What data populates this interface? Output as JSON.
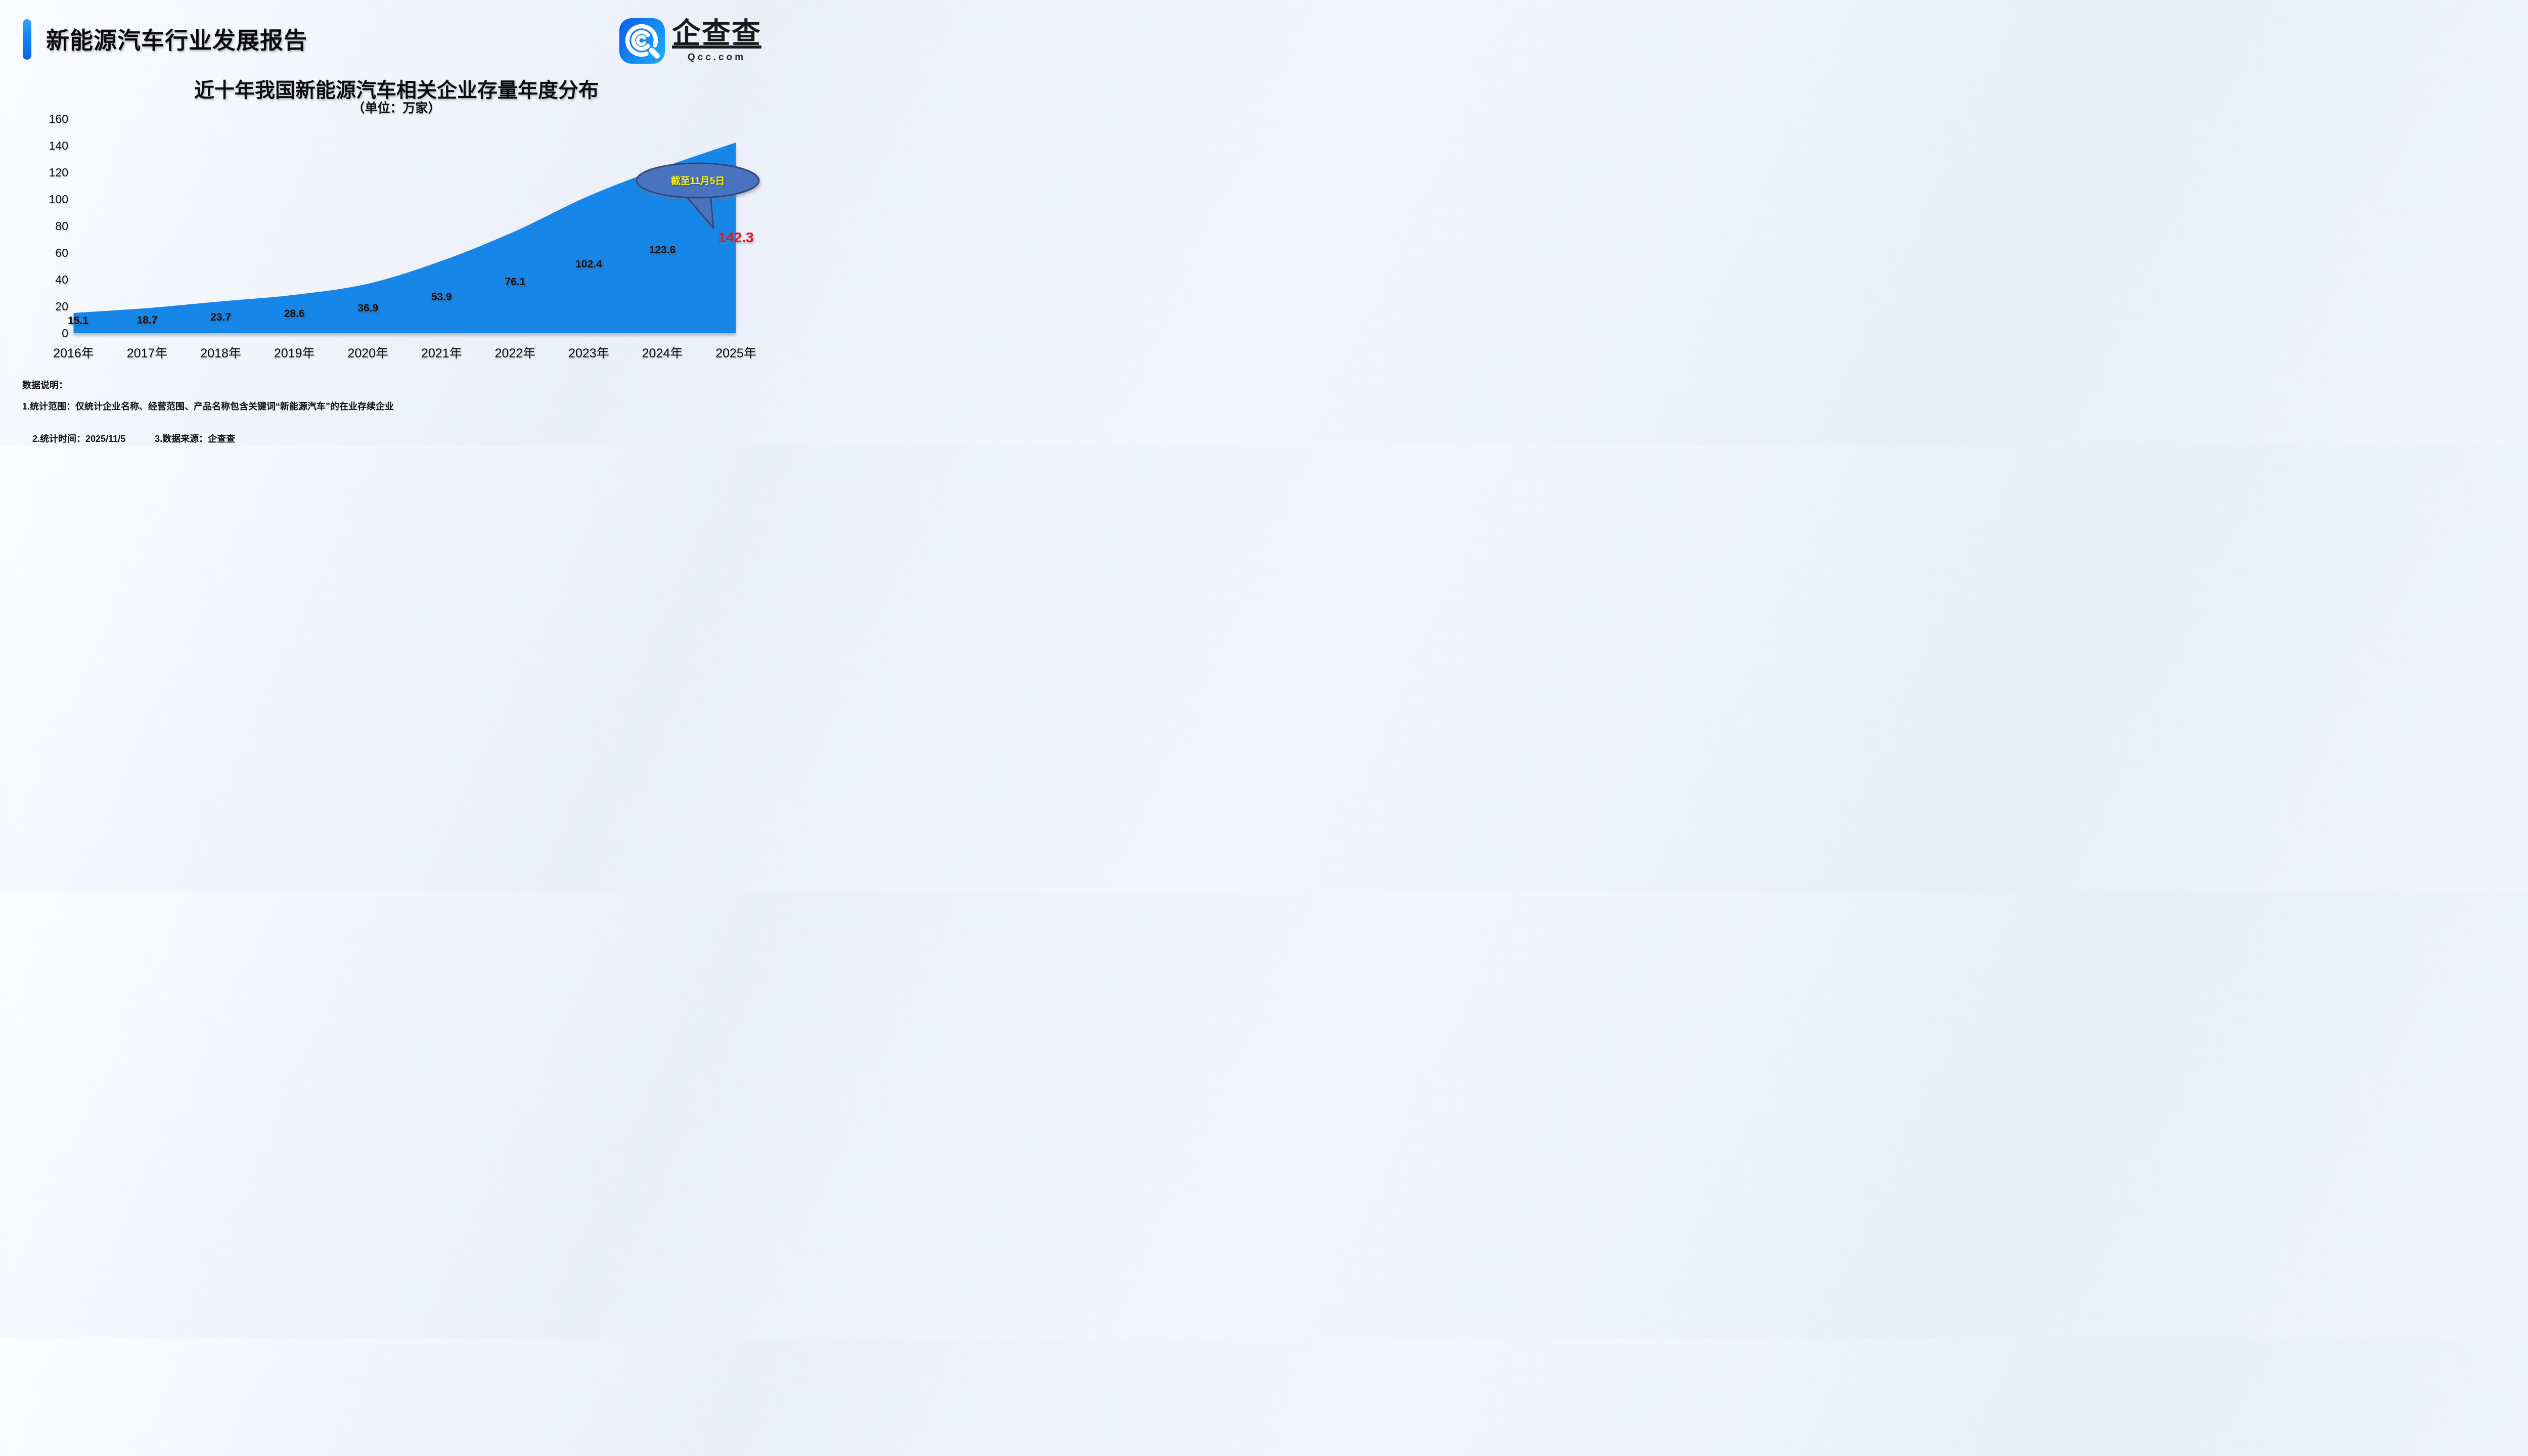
{
  "header": {
    "title": "新能源汽车行业发展报告"
  },
  "logo": {
    "name": "企查查",
    "domain": "Qcc.com"
  },
  "chart_data": {
    "type": "area",
    "title": "近十年我国新能源汽车相关企业存量年度分布",
    "subtitle": "（单位：万家）",
    "categories": [
      "2016年",
      "2017年",
      "2018年",
      "2019年",
      "2020年",
      "2021年",
      "2022年",
      "2023年",
      "2024年",
      "2025年"
    ],
    "values": [
      15.1,
      18.7,
      23.7,
      28.6,
      36.9,
      53.9,
      76.1,
      102.4,
      123.6,
      142.3
    ],
    "ylim": [
      0,
      160
    ],
    "yticks": [
      0,
      20,
      40,
      60,
      80,
      100,
      120,
      140,
      160
    ],
    "grid": "off",
    "legend": "none",
    "annotation": {
      "text": "截至11月5日",
      "points_to_value": 142.3
    },
    "colors": {
      "area": "#1786E8",
      "label": "#101010",
      "highlight": "#E8141C",
      "bubble_fill": "#4A73BE",
      "bubble_border": "#31497C",
      "bubble_text": "#F7F200"
    }
  },
  "footnotes": {
    "heading": "数据说明：",
    "line1": "1.统计范围：仅统计企业名称、经营范围、产品名称包含关键词“新能源汽车”的在业存续企业",
    "line2_items": [
      "2.统计时间：2025/11/5",
      "3.数据来源：企查查"
    ]
  }
}
